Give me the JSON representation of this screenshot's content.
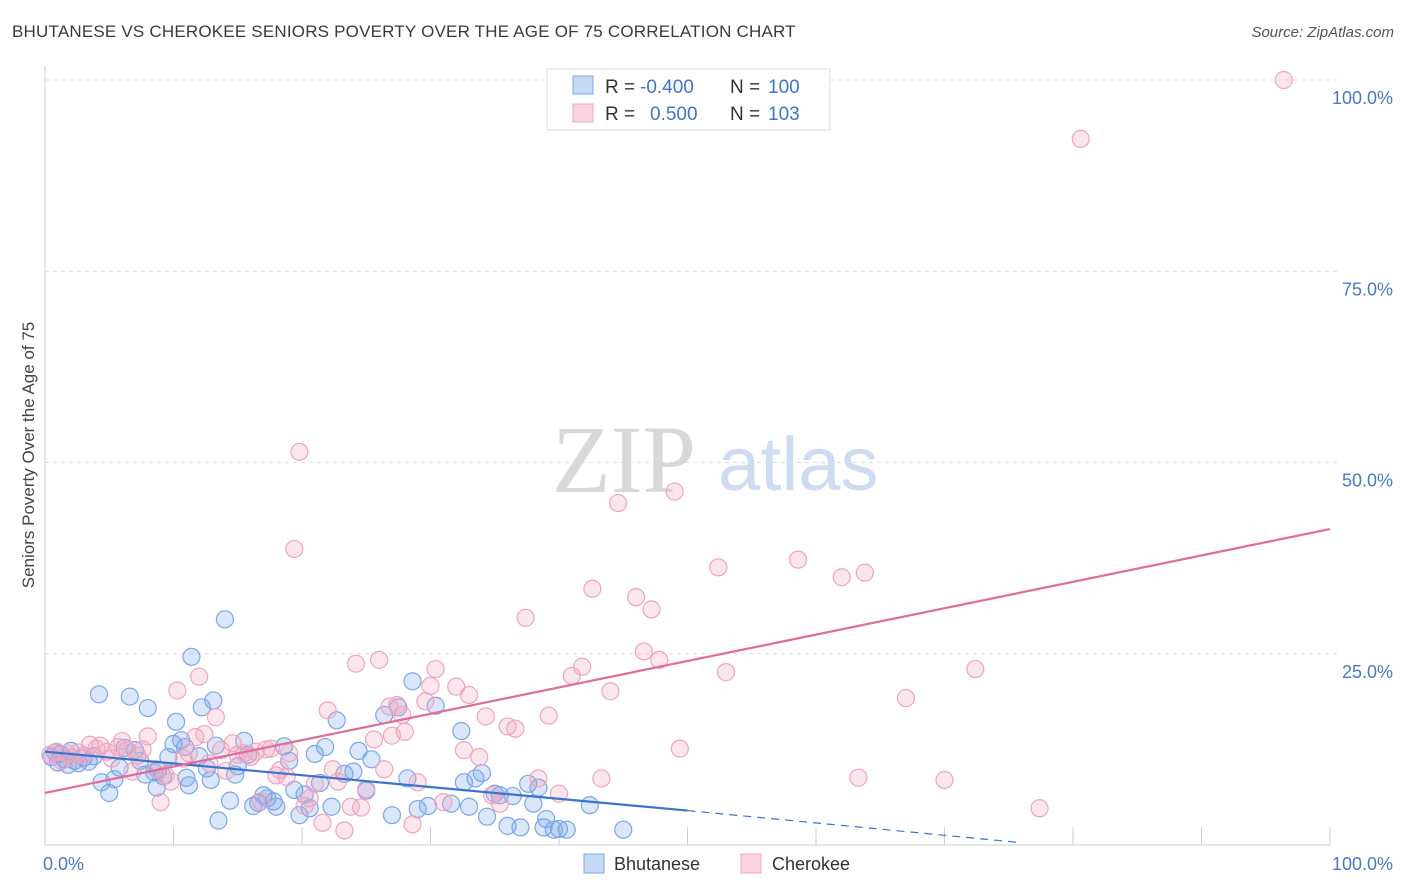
{
  "title": "BHUTANESE VS CHEROKEE SENIORS POVERTY OVER THE AGE OF 75 CORRELATION CHART",
  "source": "Source: ZipAtlas.com",
  "watermark": {
    "zip": "ZIP",
    "atlas": "atlas"
  },
  "chart_data": {
    "type": "scatter",
    "xlabel": "",
    "ylabel": "Seniors Poverty Over the Age of 75",
    "xlim": [
      0,
      100
    ],
    "ylim": [
      0,
      100
    ],
    "x_tick_labels": [
      "0.0%",
      "100.0%"
    ],
    "y_ticks": [
      25,
      50,
      75,
      100
    ],
    "y_tick_labels": [
      "25.0%",
      "50.0%",
      "75.0%",
      "100.0%"
    ],
    "legend": {
      "r_label": "R =",
      "n_label": "N =",
      "entries": [
        {
          "name": "Bhutanese",
          "r": "-0.400",
          "n": "100"
        },
        {
          "name": "Cherokee",
          "r": "0.500",
          "n": "103"
        }
      ]
    },
    "series": [
      {
        "name": "Bhutanese",
        "color": "#7aa7e8",
        "line_color": "#3a74d0",
        "trend": {
          "x0": 0,
          "y0": 12.2,
          "x1": 50,
          "y1": 4.5,
          "dash_x1": 76,
          "dash_y1": 0.3
        },
        "points": [
          [
            0.5,
            11.5
          ],
          [
            0.8,
            12.1
          ],
          [
            1.0,
            10.8
          ],
          [
            1.2,
            11.9
          ],
          [
            1.5,
            11.2
          ],
          [
            1.8,
            10.5
          ],
          [
            2.0,
            12.3
          ],
          [
            2.3,
            11.0
          ],
          [
            2.6,
            10.7
          ],
          [
            3.0,
            11.4
          ],
          [
            3.4,
            10.9
          ],
          [
            3.8,
            11.6
          ],
          [
            4.2,
            19.7
          ],
          [
            4.4,
            8.2
          ],
          [
            5.0,
            6.8
          ],
          [
            5.4,
            8.6
          ],
          [
            5.8,
            10.1
          ],
          [
            6.2,
            12.7
          ],
          [
            6.6,
            19.4
          ],
          [
            7.0,
            12.4
          ],
          [
            7.4,
            11.0
          ],
          [
            7.8,
            9.2
          ],
          [
            8.0,
            17.9
          ],
          [
            8.5,
            9.5
          ],
          [
            8.8,
            9.8
          ],
          [
            8.7,
            7.5
          ],
          [
            9.2,
            9.0
          ],
          [
            9.6,
            11.5
          ],
          [
            10.0,
            13.2
          ],
          [
            10.2,
            16.1
          ],
          [
            10.6,
            13.7
          ],
          [
            10.9,
            12.8
          ],
          [
            11.0,
            8.8
          ],
          [
            11.2,
            7.8
          ],
          [
            11.4,
            24.6
          ],
          [
            12.0,
            11.6
          ],
          [
            12.2,
            18.0
          ],
          [
            12.6,
            10.0
          ],
          [
            12.9,
            8.5
          ],
          [
            13.1,
            18.9
          ],
          [
            13.3,
            13.0
          ],
          [
            13.5,
            3.2
          ],
          [
            14.0,
            29.5
          ],
          [
            14.4,
            5.8
          ],
          [
            14.8,
            9.2
          ],
          [
            15.0,
            10.3
          ],
          [
            15.5,
            13.6
          ],
          [
            15.8,
            11.8
          ],
          [
            16.2,
            5.1
          ],
          [
            16.6,
            5.5
          ],
          [
            17.0,
            6.5
          ],
          [
            17.3,
            6.1
          ],
          [
            17.8,
            5.7
          ],
          [
            18.0,
            5.0
          ],
          [
            18.6,
            12.9
          ],
          [
            19.0,
            11.0
          ],
          [
            19.4,
            7.2
          ],
          [
            19.8,
            3.9
          ],
          [
            20.2,
            6.6
          ],
          [
            20.6,
            4.8
          ],
          [
            21.0,
            11.9
          ],
          [
            21.4,
            8.1
          ],
          [
            21.8,
            12.8
          ],
          [
            22.3,
            5.0
          ],
          [
            22.7,
            16.3
          ],
          [
            23.3,
            9.3
          ],
          [
            24.0,
            9.6
          ],
          [
            24.4,
            12.3
          ],
          [
            25.0,
            7.1
          ],
          [
            25.4,
            11.2
          ],
          [
            26.4,
            17.0
          ],
          [
            27.0,
            3.9
          ],
          [
            27.5,
            18.0
          ],
          [
            28.2,
            8.7
          ],
          [
            28.6,
            21.4
          ],
          [
            29.0,
            4.7
          ],
          [
            29.8,
            5.1
          ],
          [
            30.4,
            18.2
          ],
          [
            31.6,
            5.4
          ],
          [
            32.4,
            14.9
          ],
          [
            32.6,
            8.2
          ],
          [
            33.0,
            5.0
          ],
          [
            33.5,
            8.7
          ],
          [
            34.0,
            9.4
          ],
          [
            34.4,
            3.7
          ],
          [
            35.0,
            6.7
          ],
          [
            35.4,
            6.5
          ],
          [
            36.0,
            2.5
          ],
          [
            36.4,
            6.4
          ],
          [
            37.0,
            2.3
          ],
          [
            37.6,
            8.0
          ],
          [
            38.0,
            5.4
          ],
          [
            38.4,
            7.5
          ],
          [
            38.8,
            2.3
          ],
          [
            39.0,
            3.4
          ],
          [
            39.6,
            2.0
          ],
          [
            40.0,
            2.1
          ],
          [
            40.6,
            2.0
          ],
          [
            42.4,
            5.2
          ],
          [
            45.0,
            2.0
          ]
        ]
      },
      {
        "name": "Cherokee",
        "color": "#f0a4bf",
        "line_color": "#e06c98",
        "trend": {
          "x0": 0,
          "y0": 6.8,
          "x1": 100,
          "y1": 41.3
        },
        "points": [
          [
            0.4,
            11.8
          ],
          [
            0.9,
            12.2
          ],
          [
            1.3,
            11.0
          ],
          [
            1.7,
            12.0
          ],
          [
            2.1,
            11.4
          ],
          [
            2.6,
            12.1
          ],
          [
            3.0,
            11.7
          ],
          [
            3.5,
            13.1
          ],
          [
            4.0,
            12.6
          ],
          [
            4.3,
            13.0
          ],
          [
            4.8,
            12.2
          ],
          [
            5.2,
            11.3
          ],
          [
            5.7,
            12.8
          ],
          [
            6.0,
            13.6
          ],
          [
            6.4,
            12.4
          ],
          [
            6.8,
            9.6
          ],
          [
            7.2,
            11.7
          ],
          [
            7.6,
            12.5
          ],
          [
            8.0,
            14.2
          ],
          [
            8.7,
            9.9
          ],
          [
            9.0,
            5.6
          ],
          [
            9.4,
            9.1
          ],
          [
            9.8,
            8.3
          ],
          [
            10.3,
            20.2
          ],
          [
            10.8,
            11.3
          ],
          [
            11.2,
            12.0
          ],
          [
            11.7,
            14.1
          ],
          [
            12.0,
            22.0
          ],
          [
            12.4,
            14.5
          ],
          [
            12.8,
            10.7
          ],
          [
            13.3,
            16.7
          ],
          [
            13.7,
            12.4
          ],
          [
            14.1,
            9.7
          ],
          [
            14.6,
            13.3
          ],
          [
            15.0,
            11.8
          ],
          [
            15.5,
            12.0
          ],
          [
            16.0,
            11.5
          ],
          [
            16.4,
            12.2
          ],
          [
            16.8,
            5.7
          ],
          [
            17.2,
            12.5
          ],
          [
            17.6,
            12.6
          ],
          [
            18.0,
            9.1
          ],
          [
            18.3,
            9.8
          ],
          [
            18.8,
            8.9
          ],
          [
            19.0,
            12.0
          ],
          [
            19.4,
            38.7
          ],
          [
            19.8,
            51.4
          ],
          [
            20.2,
            5.1
          ],
          [
            20.6,
            6.1
          ],
          [
            21.0,
            8.0
          ],
          [
            21.6,
            2.9
          ],
          [
            22.0,
            17.6
          ],
          [
            22.4,
            9.9
          ],
          [
            22.8,
            8.3
          ],
          [
            23.3,
            1.9
          ],
          [
            23.8,
            5.0
          ],
          [
            24.2,
            23.7
          ],
          [
            24.6,
            4.9
          ],
          [
            25.0,
            7.3
          ],
          [
            25.6,
            13.8
          ],
          [
            26.0,
            24.2
          ],
          [
            26.4,
            9.9
          ],
          [
            26.8,
            18.1
          ],
          [
            27.0,
            14.3
          ],
          [
            27.4,
            18.3
          ],
          [
            27.8,
            17.0
          ],
          [
            28.0,
            14.8
          ],
          [
            28.6,
            2.7
          ],
          [
            29.0,
            8.2
          ],
          [
            29.6,
            18.8
          ],
          [
            30.0,
            20.8
          ],
          [
            30.4,
            23.0
          ],
          [
            31.0,
            5.6
          ],
          [
            32.0,
            20.7
          ],
          [
            32.6,
            12.4
          ],
          [
            33.0,
            19.6
          ],
          [
            33.8,
            11.5
          ],
          [
            34.3,
            16.8
          ],
          [
            34.8,
            6.5
          ],
          [
            35.4,
            5.4
          ],
          [
            36.0,
            15.5
          ],
          [
            36.6,
            15.2
          ],
          [
            37.4,
            29.7
          ],
          [
            38.4,
            8.7
          ],
          [
            39.2,
            16.9
          ],
          [
            40.0,
            6.7
          ],
          [
            41.0,
            22.1
          ],
          [
            41.8,
            23.3
          ],
          [
            42.6,
            33.5
          ],
          [
            43.3,
            8.7
          ],
          [
            44.0,
            20.1
          ],
          [
            44.6,
            44.7
          ],
          [
            46.0,
            32.4
          ],
          [
            46.6,
            25.3
          ],
          [
            47.2,
            30.8
          ],
          [
            47.8,
            24.2
          ],
          [
            49.0,
            46.2
          ],
          [
            49.4,
            12.6
          ],
          [
            52.4,
            36.3
          ],
          [
            53.0,
            22.6
          ],
          [
            58.6,
            37.3
          ],
          [
            62.0,
            35.0
          ],
          [
            63.3,
            8.8
          ]
        ],
        "extra_points": [
          [
            63.8,
            35.6
          ],
          [
            67.0,
            19.2
          ],
          [
            70.0,
            8.5
          ],
          [
            72.4,
            23.0
          ],
          [
            77.4,
            4.8
          ],
          [
            80.6,
            92.3
          ],
          [
            96.4,
            100.0
          ]
        ]
      }
    ]
  }
}
